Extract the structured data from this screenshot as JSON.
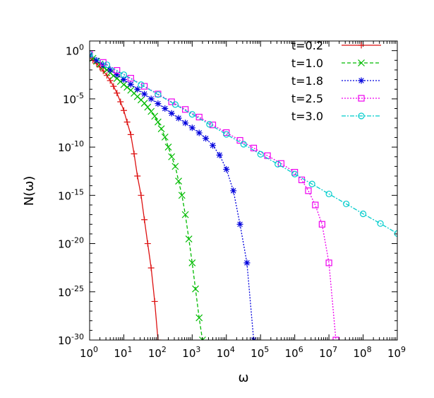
{
  "chart_data": {
    "type": "line",
    "scale": {
      "x": "log",
      "y": "log"
    },
    "xlabel": "ω",
    "ylabel": "N(ω)",
    "xlim": [
      1,
      1000000000
    ],
    "ylim": [
      1e-30,
      10
    ],
    "x_ticks": [
      {
        "base": "10",
        "exp": "0",
        "value": 1
      },
      {
        "base": "10",
        "exp": "1",
        "value": 10
      },
      {
        "base": "10",
        "exp": "2",
        "value": 100
      },
      {
        "base": "10",
        "exp": "3",
        "value": 1000
      },
      {
        "base": "10",
        "exp": "4",
        "value": 10000
      },
      {
        "base": "10",
        "exp": "5",
        "value": 100000
      },
      {
        "base": "10",
        "exp": "6",
        "value": 1000000
      },
      {
        "base": "10",
        "exp": "7",
        "value": 10000000
      },
      {
        "base": "10",
        "exp": "8",
        "value": 100000000
      },
      {
        "base": "10",
        "exp": "9",
        "value": 1000000000
      }
    ],
    "y_ticks": [
      {
        "base": "10",
        "exp": "0",
        "value": 1
      },
      {
        "base": "10",
        "exp": "-5",
        "value": 1e-05
      },
      {
        "base": "10",
        "exp": "-10",
        "value": 1e-10
      },
      {
        "base": "10",
        "exp": "-15",
        "value": 1e-15
      },
      {
        "base": "10",
        "exp": "-20",
        "value": 1e-20
      },
      {
        "base": "10",
        "exp": "-25",
        "value": 1e-25
      },
      {
        "base": "10",
        "exp": "-30",
        "value": 1e-30
      }
    ],
    "legend": {
      "position": "top-right"
    },
    "series": [
      {
        "name": "t=0.2",
        "color": "#dd1111",
        "marker": "plus",
        "dash": "solid",
        "x": [
          1,
          1.25,
          1.6,
          2,
          2.5,
          3.2,
          4,
          5,
          6.3,
          8,
          10,
          12.5,
          16,
          20,
          25,
          32,
          40,
          50,
          63,
          80,
          100
        ],
        "y": [
          0.2,
          0.1,
          0.046,
          0.02,
          0.0079,
          0.0027,
          0.00079,
          0.0002,
          4e-05,
          5e-06,
          6.3e-07,
          4e-08,
          2e-09,
          2e-11,
          1e-13,
          1e-15,
          3e-18,
          1e-20,
          3e-23,
          1e-26,
          1e-30
        ]
      },
      {
        "name": "t=1.0",
        "color": "#00bb00",
        "marker": "cross",
        "dash": "dashed",
        "x": [
          1,
          1.25,
          1.6,
          2,
          2.5,
          3.2,
          4,
          5,
          6.3,
          8,
          10,
          12.5,
          16,
          20,
          25,
          32,
          40,
          50,
          63,
          80,
          100,
          125,
          160,
          200,
          250,
          320,
          400,
          500,
          630,
          800,
          1000,
          1250,
          1600,
          2000
        ],
        "y": [
          0.3,
          0.16,
          0.08,
          0.04,
          0.02,
          0.01,
          0.005,
          0.0025,
          0.0013,
          0.00063,
          0.0003,
          0.00016,
          7.9e-05,
          3.8e-05,
          1.7e-05,
          7.9e-06,
          3.5e-06,
          1.4e-06,
          5e-07,
          1.6e-07,
          4e-08,
          7.9e-09,
          1.1e-09,
          1e-10,
          1e-11,
          1e-12,
          3e-14,
          1e-15,
          1e-17,
          3e-20,
          1e-22,
          2e-25,
          2e-28,
          1e-30
        ]
      },
      {
        "name": "t=1.8",
        "color": "#0000dd",
        "marker": "star",
        "dash": "dotted",
        "x": [
          1,
          1.6,
          2.5,
          4,
          6.3,
          10,
          16,
          25,
          40,
          63,
          100,
          160,
          250,
          400,
          630,
          1000,
          1600,
          2500,
          4000,
          6300,
          10000,
          16000,
          25000,
          40000,
          63000
        ],
        "y": [
          0.35,
          0.1,
          0.032,
          0.01,
          0.0032,
          0.001,
          0.00032,
          0.0001,
          3.2e-05,
          1e-05,
          3.2e-06,
          1e-06,
          3.2e-07,
          1e-07,
          3.2e-08,
          1e-08,
          3e-09,
          8e-10,
          1.5e-10,
          1.5e-11,
          5e-13,
          3e-15,
          1e-18,
          1e-22,
          1e-30
        ]
      },
      {
        "name": "t=2.5",
        "color": "#ee00ee",
        "marker": "square",
        "dash": "dotted",
        "x": [
          1,
          2.5,
          6.3,
          16,
          40,
          100,
          250,
          630,
          1600,
          4000,
          10000,
          25000,
          63000,
          160000,
          400000,
          1000000,
          1600000,
          2500000,
          4000000,
          6300000,
          10000000,
          16000000
        ],
        "y": [
          0.4,
          0.06,
          0.009,
          0.0014,
          0.0002,
          3.2e-05,
          5e-06,
          8e-07,
          1.3e-07,
          2e-08,
          3.2e-09,
          5e-10,
          8e-11,
          1.3e-11,
          2e-12,
          2.5e-13,
          4e-14,
          3e-15,
          1e-16,
          1e-18,
          1e-22,
          1e-30
        ]
      },
      {
        "name": "t=3.0",
        "color": "#00cccc",
        "marker": "circle",
        "dash": "dashdot",
        "x": [
          1,
          3.2,
          10,
          32,
          100,
          320,
          1000,
          3200,
          10000,
          32000,
          100000,
          320000,
          1000000,
          3200000,
          10000000,
          32000000,
          100000000,
          320000000,
          1000000000
        ],
        "y": [
          0.4,
          0.034,
          0.0032,
          0.0003,
          2.8e-05,
          2.6e-06,
          2.5e-07,
          2.3e-08,
          2.1e-09,
          2e-10,
          1.8e-11,
          1.7e-12,
          1.6e-13,
          1.5e-14,
          1.4e-15,
          1.3e-16,
          1.2e-17,
          1.2e-18,
          1.1e-19
        ]
      }
    ]
  }
}
